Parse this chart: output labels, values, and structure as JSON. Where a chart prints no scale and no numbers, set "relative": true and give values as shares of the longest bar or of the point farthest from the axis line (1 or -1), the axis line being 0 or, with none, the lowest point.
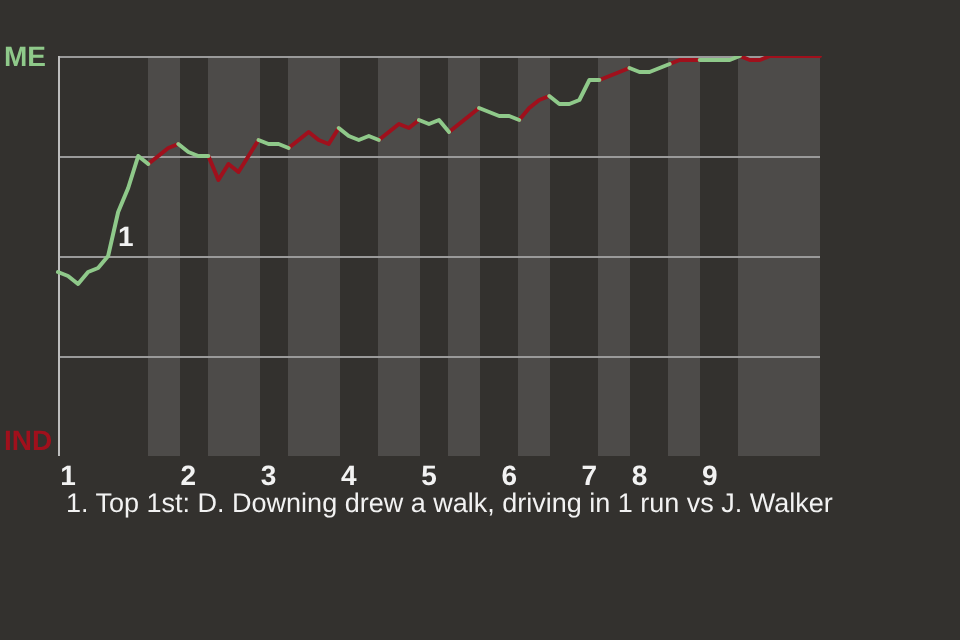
{
  "chart_data": {
    "type": "line",
    "relative": true,
    "categories": [
      null,
      "1",
      null,
      null,
      null,
      null,
      null,
      null,
      null,
      null,
      null,
      null,
      null,
      "2",
      null,
      null,
      null,
      null,
      null,
      null,
      null,
      "3",
      null,
      null,
      null,
      null,
      null,
      null,
      null,
      "4",
      null,
      null,
      null,
      null,
      null,
      null,
      null,
      "5",
      null,
      null,
      null,
      null,
      null,
      null,
      null,
      "6",
      null,
      null,
      null,
      null,
      null,
      null,
      null,
      "7",
      null,
      null,
      null,
      null,
      "8",
      null,
      null,
      null,
      null,
      null,
      null,
      "9",
      null,
      null,
      null,
      null,
      null,
      null,
      null,
      null,
      null,
      null,
      null
    ],
    "grid": "y",
    "marker": "none",
    "line_style": "solid",
    "legend": false,
    "series": [
      {
        "color": "#8fc98a",
        "values": [
          0.46,
          0.45,
          0.43,
          0.46,
          0.47,
          0.5,
          0.61,
          0.67,
          0.75,
          0.73,
          null,
          null,
          0.78,
          0.76,
          0.75,
          0.75,
          null,
          null,
          null,
          null,
          0.79,
          0.78,
          0.78,
          0.77,
          null,
          null,
          null,
          null,
          0.82,
          0.8,
          0.79,
          0.8,
          0.79,
          null,
          null,
          null,
          0.84,
          0.83,
          0.84,
          0.81,
          null,
          null,
          0.87,
          0.86,
          0.85,
          0.85,
          0.84,
          null,
          null,
          0.9,
          0.88,
          0.88,
          0.89,
          0.94,
          0.94,
          null,
          null,
          0.97,
          0.96,
          0.96,
          0.97,
          0.98,
          null,
          null,
          0.99,
          0.99,
          0.99,
          0.99,
          1.0,
          null,
          null,
          null,
          null,
          null,
          null,
          null,
          null
        ]
      },
      {
        "color": "#a0101c",
        "values": [
          null,
          null,
          null,
          null,
          null,
          null,
          null,
          null,
          null,
          0.73,
          0.75,
          0.77,
          0.78,
          null,
          null,
          0.75,
          0.69,
          0.73,
          0.71,
          0.75,
          0.79,
          null,
          null,
          0.77,
          0.79,
          0.81,
          0.79,
          0.78,
          0.82,
          null,
          null,
          null,
          0.79,
          0.81,
          0.83,
          0.82,
          0.84,
          null,
          null,
          0.81,
          0.83,
          0.85,
          0.87,
          null,
          null,
          null,
          0.84,
          0.87,
          0.89,
          0.9,
          null,
          null,
          null,
          null,
          0.94,
          0.95,
          0.96,
          0.97,
          null,
          null,
          null,
          0.98,
          0.99,
          0.99,
          0.99,
          null,
          null,
          null,
          1.0,
          0.99,
          0.99,
          1.0,
          1.0,
          1.0,
          1.0,
          1.0,
          1.0
        ]
      }
    ],
    "annotations": [
      "ME",
      "IND",
      "1",
      "1. Top 1st: D. Downing drew a walk, driving in 1 run vs J. Walker"
    ]
  }
}
